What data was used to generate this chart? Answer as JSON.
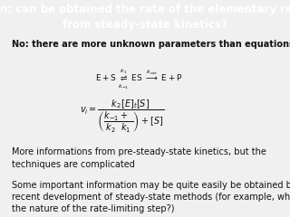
{
  "title_line1": "Question: can be obtained the rate of the elementary reactions",
  "title_line2": "from steady-state kinetics?",
  "title_bg": "#cc0000",
  "title_color": "#ffffff",
  "body_bg": "#f0f0f0",
  "text1": "No: there are more unknown parameters than equations!",
  "text2": "More informations from pre-steady-state kinetics, but the\ntechniques are complicated",
  "text3": "Some important information may be quite easily be obtained by\nrecent development of steady-state methods (for example, what is\nthe nature of the rate-limiting step?)",
  "text_color": "#111111",
  "title_fontsize": 8.5,
  "body_fontsize": 7.0,
  "reaction_fontsize": 6.5,
  "formula_fontsize": 7.0
}
